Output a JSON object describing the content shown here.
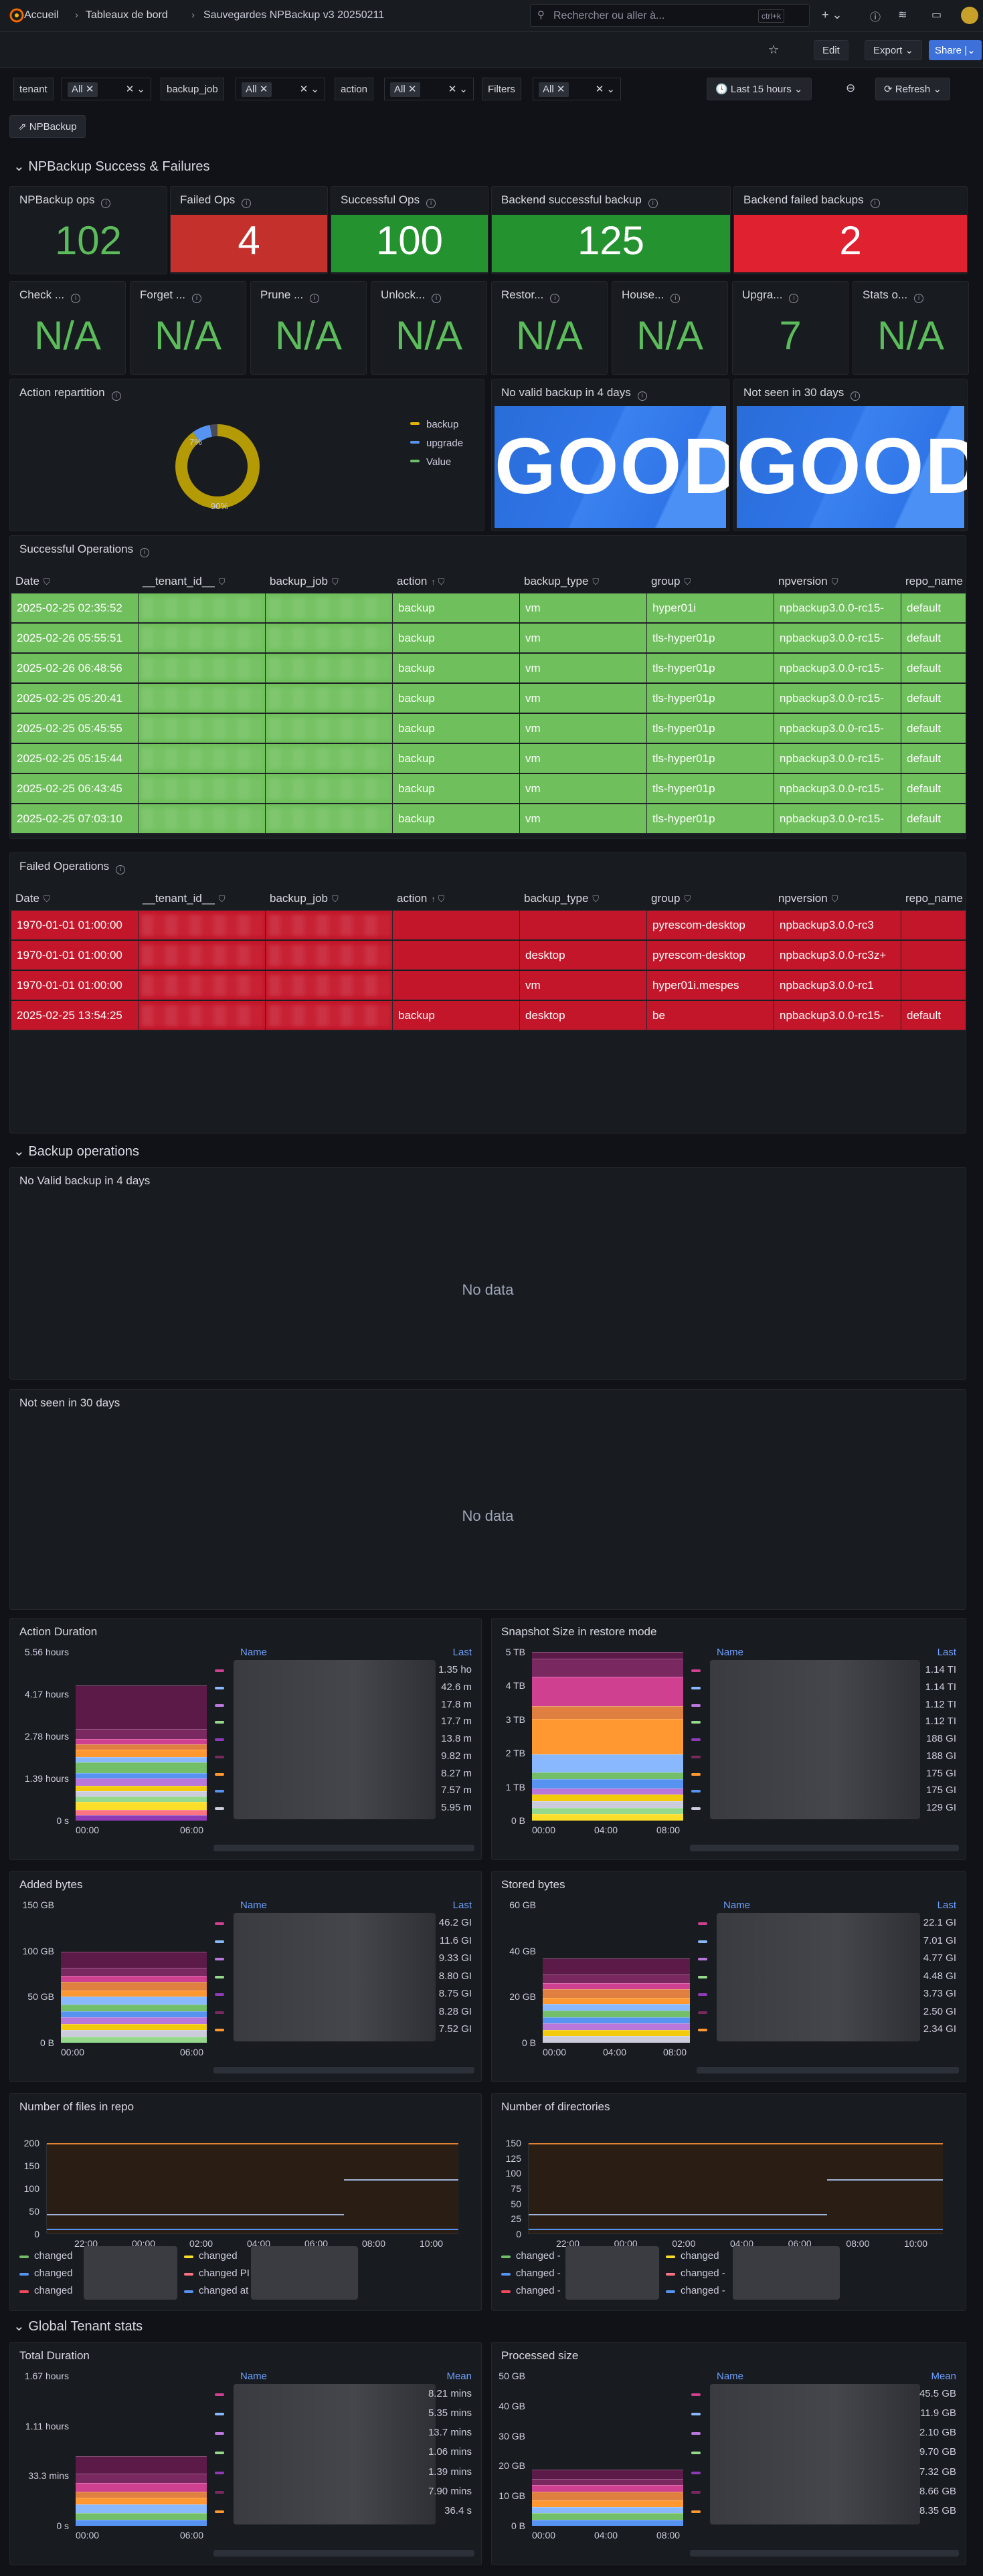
{
  "breadcrumbs": [
    "Accueil",
    "Tableaux de bord",
    "Sauvegardes NPBackup v3 20250211"
  ],
  "search": {
    "placeholder": "Rechercher ou aller à...",
    "shortcut": "ctrl+k"
  },
  "toolbar": {
    "edit": "Edit",
    "export": "Export",
    "share": "Share",
    "time_range": "Last 15 hours",
    "refresh": "Refresh"
  },
  "variables": [
    {
      "label": "tenant",
      "value": "All"
    },
    {
      "label": "backup_job",
      "value": "All"
    },
    {
      "label": "action",
      "value": "All"
    },
    {
      "label": "Filters",
      "value": "All"
    }
  ],
  "link": "NPBackup",
  "sections": {
    "s1": "NPBackup Success & Failures",
    "s2": "Backup operations",
    "s3": "Global Tenant stats"
  },
  "stats_row1": [
    {
      "title": "NPBackup ops",
      "value": "102",
      "bg": "",
      "color": "#5cbc5c"
    },
    {
      "title": "Failed Ops",
      "value": "4",
      "bg": "#c4302b",
      "color": "#ffffff"
    },
    {
      "title": "Successful Ops",
      "value": "100",
      "bg": "#24922e",
      "color": "#ffffff"
    },
    {
      "title": "Backend successful backup",
      "value": "125",
      "bg": "#24922e",
      "color": "#ffffff"
    },
    {
      "title": "Backend failed backups",
      "value": "2",
      "bg": "#e0212f",
      "color": "#ffffff"
    }
  ],
  "stats_row2": [
    {
      "title": "Check ...",
      "value": "N/A"
    },
    {
      "title": "Forget ...",
      "value": "N/A"
    },
    {
      "title": "Prune ...",
      "value": "N/A"
    },
    {
      "title": "Unlock...",
      "value": "N/A"
    },
    {
      "title": "Restor...",
      "value": "N/A"
    },
    {
      "title": "House...",
      "value": "N/A"
    },
    {
      "title": "Upgra...",
      "value": "7"
    },
    {
      "title": "Stats o...",
      "value": "N/A"
    }
  ],
  "pie": {
    "title": "Action repartition",
    "legend": [
      {
        "name": "backup",
        "color": "#e0b400"
      },
      {
        "name": "upgrade",
        "color": "#5794f2"
      },
      {
        "name": "Value",
        "color": "#73bf69"
      }
    ],
    "labels": [
      "7%",
      "90%"
    ],
    "segments": [
      {
        "name": "backup",
        "value": 90,
        "color": "#b49a04"
      },
      {
        "name": "upgrade",
        "value": 7,
        "color": "#5794f2"
      },
      {
        "name": "Value",
        "value": 3,
        "color": "#4a4a58"
      }
    ]
  },
  "good_panels": [
    {
      "title": "No valid backup in 4 days",
      "value": "GOOD"
    },
    {
      "title": "Not seen in 30 days",
      "value": "GOOD"
    }
  ],
  "success_table": {
    "title": "Successful Operations",
    "columns": [
      "Date",
      "__tenant_id__",
      "backup_job",
      "action",
      "backup_type",
      "group",
      "npversion",
      "repo_name"
    ],
    "rows": [
      [
        "2025-02-25 02:35:52",
        "",
        "",
        "backup",
        "vm",
        "hyper01i",
        "npbackup3.0.0-rc15-",
        "default"
      ],
      [
        "2025-02-26 05:55:51",
        "",
        "",
        "backup",
        "vm",
        "tls-hyper01p",
        "npbackup3.0.0-rc15-",
        "default"
      ],
      [
        "2025-02-26 06:48:56",
        "",
        "",
        "backup",
        "vm",
        "tls-hyper01p",
        "npbackup3.0.0-rc15-",
        "default"
      ],
      [
        "2025-02-25 05:20:41",
        "",
        "",
        "backup",
        "vm",
        "tls-hyper01p",
        "npbackup3.0.0-rc15-",
        "default"
      ],
      [
        "2025-02-25 05:45:55",
        "",
        "",
        "backup",
        "vm",
        "tls-hyper01p",
        "npbackup3.0.0-rc15-",
        "default"
      ],
      [
        "2025-02-25 05:15:44",
        "",
        "",
        "backup",
        "vm",
        "tls-hyper01p",
        "npbackup3.0.0-rc15-",
        "default"
      ],
      [
        "2025-02-25 06:43:45",
        "",
        "",
        "backup",
        "vm",
        "tls-hyper01p",
        "npbackup3.0.0-rc15-",
        "default"
      ],
      [
        "2025-02-25 07:03:10",
        "",
        "",
        "backup",
        "vm",
        "tls-hyper01p",
        "npbackup3.0.0-rc15-",
        "default"
      ]
    ]
  },
  "failed_table": {
    "title": "Failed Operations",
    "columns": [
      "Date",
      "__tenant_id__",
      "backup_job",
      "action",
      "backup_type",
      "group",
      "npversion",
      "repo_name"
    ],
    "rows": [
      [
        "1970-01-01 01:00:00",
        "",
        "",
        "",
        "",
        "pyrescom-desktop",
        "npbackup3.0.0-rc3",
        ""
      ],
      [
        "1970-01-01 01:00:00",
        "",
        "",
        "",
        "desktop",
        "pyrescom-desktop",
        "npbackup3.0.0-rc3z+",
        ""
      ],
      [
        "1970-01-01 01:00:00",
        "",
        "",
        "",
        "vm",
        "hyper01i.mespes",
        "npbackup3.0.0-rc1",
        ""
      ],
      [
        "2025-02-25 13:54:25",
        "",
        "",
        "backup",
        "desktop",
        "be",
        "npbackup3.0.0-rc15-",
        "default"
      ]
    ]
  },
  "nodata_panels": [
    {
      "title": "No Valid backup in 4 days",
      "text": "No data"
    },
    {
      "title": "Not seen in 30 days",
      "text": "No data"
    }
  ],
  "ts_panels": [
    {
      "title": "Action Duration",
      "yticks": [
        "5.56 hours",
        "4.17 hours",
        "2.78 hours",
        "1.39 hours",
        "0 s"
      ],
      "xticks": [
        "00:00",
        "06:00"
      ],
      "legend_col": "Last",
      "values": [
        "1.35 ho",
        "42.6 m",
        "17.8 m",
        "17.7 m",
        "13.8 m",
        "9.82 m",
        "8.27 m",
        "7.57 m",
        "5.95 m"
      ]
    },
    {
      "title": "Snapshot Size in restore mode",
      "yticks": [
        "5 TB",
        "4 TB",
        "3 TB",
        "2 TB",
        "1 TB",
        "0 B"
      ],
      "xticks": [
        "00:00",
        "04:00",
        "08:00"
      ],
      "legend_col": "Last",
      "values": [
        "1.14 TI",
        "1.14 TI",
        "1.12 TI",
        "1.12 TI",
        "188 GI",
        "188 GI",
        "175 GI",
        "175 GI",
        "129 GI"
      ]
    },
    {
      "title": "Added bytes",
      "yticks": [
        "150 GB",
        "100 GB",
        "50 GB",
        "0 B"
      ],
      "xticks": [
        "00:00",
        "06:00"
      ],
      "legend_col": "Last",
      "values": [
        "46.2 GI",
        "11.6 GI",
        "9.33 GI",
        "8.80 GI",
        "8.75 GI",
        "8.28 GI",
        "7.52 GI"
      ]
    },
    {
      "title": "Stored bytes",
      "yticks": [
        "60 GB",
        "40 GB",
        "20 GB",
        "0 B"
      ],
      "xticks": [
        "00:00",
        "04:00",
        "08:00"
      ],
      "legend_col": "Last",
      "values": [
        "22.1 GI",
        "7.01 GI",
        "4.77 GI",
        "4.48 GI",
        "3.73 GI",
        "2.50 GI",
        "2.34 GI"
      ]
    }
  ],
  "line_panels": [
    {
      "title": "Number of files in repo",
      "yticks": [
        "200",
        "150",
        "100",
        "50",
        "0"
      ],
      "xticks": [
        "22:00",
        "00:00",
        "02:00",
        "04:00",
        "06:00",
        "08:00",
        "10:00"
      ],
      "legend": [
        "changed",
        "changed",
        "changed",
        "changed",
        "changed PI",
        "changed at"
      ]
    },
    {
      "title": "Number of directories",
      "yticks": [
        "150",
        "125",
        "100",
        "75",
        "50",
        "25",
        "0"
      ],
      "xticks": [
        "22:00",
        "00:00",
        "02:00",
        "04:00",
        "06:00",
        "08:00",
        "10:00"
      ],
      "legend": [
        "changed -",
        "changed -",
        "changed -",
        "changed",
        "changed -",
        "changed -"
      ]
    }
  ],
  "global_panels": [
    {
      "title": "Total Duration",
      "yticks": [
        "1.67 hours",
        "1.11 hours",
        "33.3 mins",
        "0 s"
      ],
      "xticks": [
        "00:00",
        "06:00"
      ],
      "legend_col": "Mean",
      "values": [
        "8.21 mins",
        "5.35 mins",
        "13.7 mins",
        "1.06 mins",
        "1.39 mins",
        "7.90 mins",
        "36.4 s"
      ]
    },
    {
      "title": "Processed size",
      "yticks": [
        "50 GB",
        "40 GB",
        "30 GB",
        "20 GB",
        "10 GB",
        "0 B"
      ],
      "xticks": [
        "00:00",
        "04:00",
        "08:00"
      ],
      "legend_col": "Mean",
      "values": [
        "45.5 GB",
        "11.9 GB",
        "2.10 GB",
        "9.70 GB",
        "7.32 GB",
        "8.66 GB",
        "8.35 GB"
      ]
    }
  ],
  "legend_name": "Name"
}
